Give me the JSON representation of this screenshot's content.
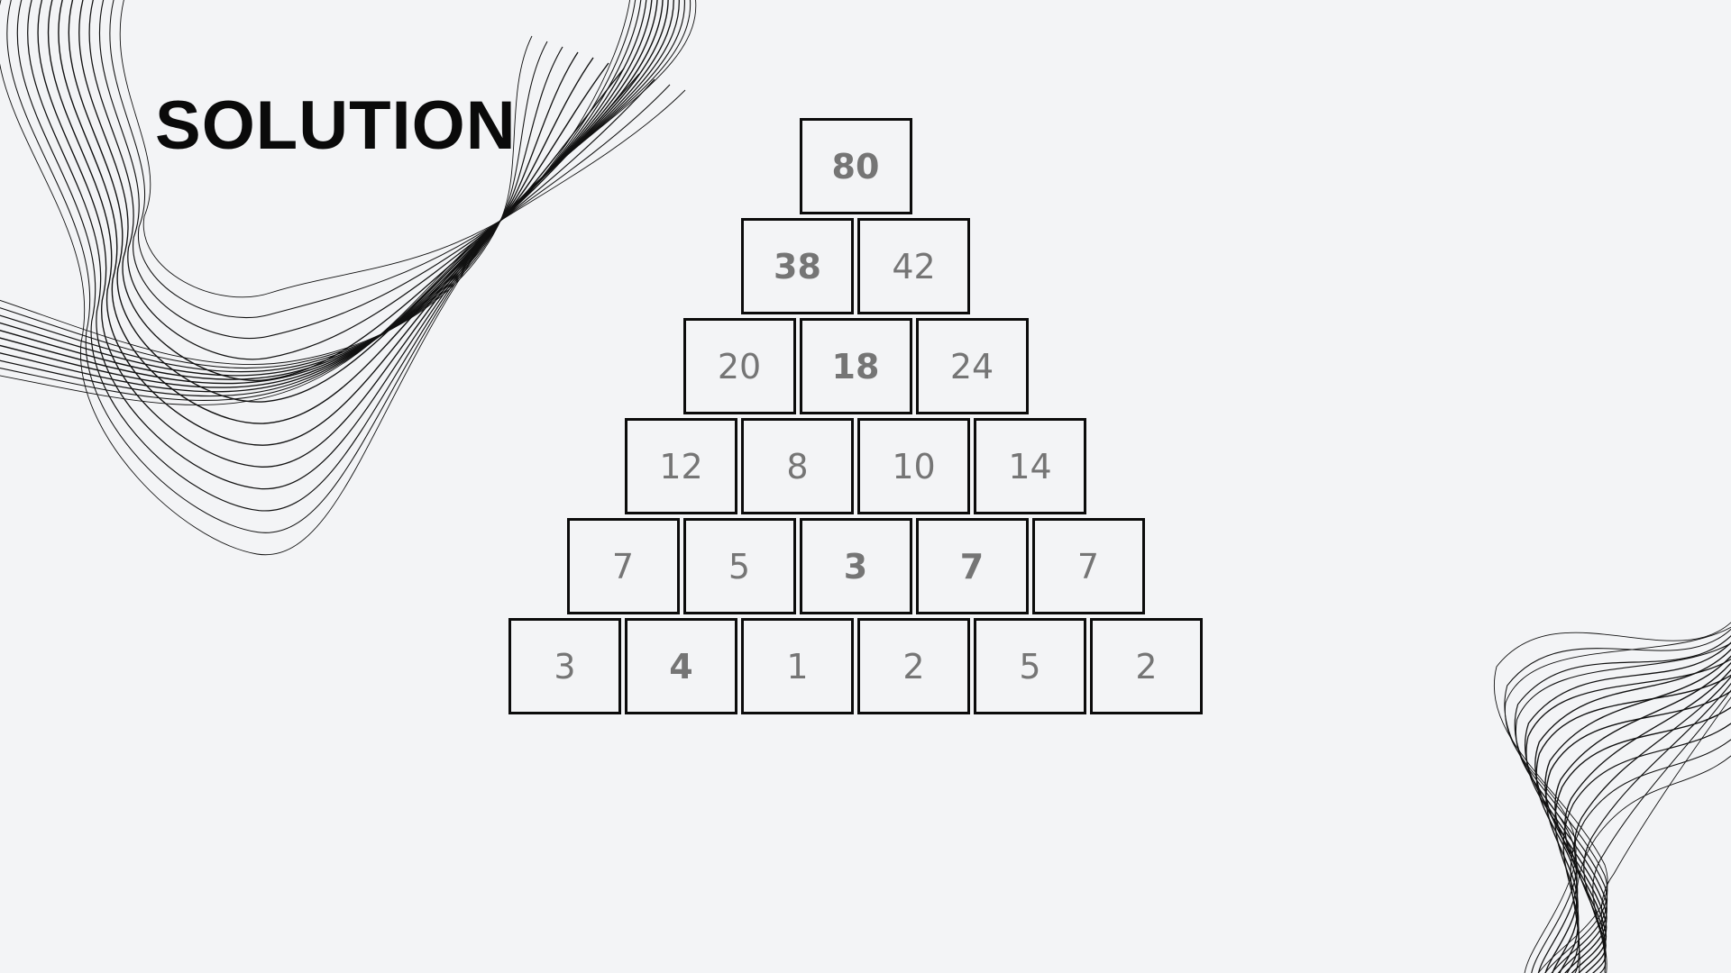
{
  "title": "SOLUTION",
  "colors": {
    "background": "#f3f4f6",
    "title": "#0a0a0a",
    "cell_border": "#0b0b0b",
    "cell_text": "#757575",
    "wave_stroke": "#111111"
  },
  "pyramid": {
    "rows": [
      [
        {
          "value": "80",
          "bold": true
        }
      ],
      [
        {
          "value": "38",
          "bold": true
        },
        {
          "value": "42",
          "bold": false
        }
      ],
      [
        {
          "value": "20",
          "bold": false
        },
        {
          "value": "18",
          "bold": true
        },
        {
          "value": "24",
          "bold": false
        }
      ],
      [
        {
          "value": "12",
          "bold": false
        },
        {
          "value": "8",
          "bold": false
        },
        {
          "value": "10",
          "bold": false
        },
        {
          "value": "14",
          "bold": false
        }
      ],
      [
        {
          "value": "7",
          "bold": false
        },
        {
          "value": "5",
          "bold": false
        },
        {
          "value": "3",
          "bold": true
        },
        {
          "value": "7",
          "bold": true
        },
        {
          "value": "7",
          "bold": false
        }
      ],
      [
        {
          "value": "3",
          "bold": false
        },
        {
          "value": "4",
          "bold": true
        },
        {
          "value": "1",
          "bold": false
        },
        {
          "value": "2",
          "bold": false
        },
        {
          "value": "5",
          "bold": false
        },
        {
          "value": "2",
          "bold": false
        }
      ]
    ]
  }
}
